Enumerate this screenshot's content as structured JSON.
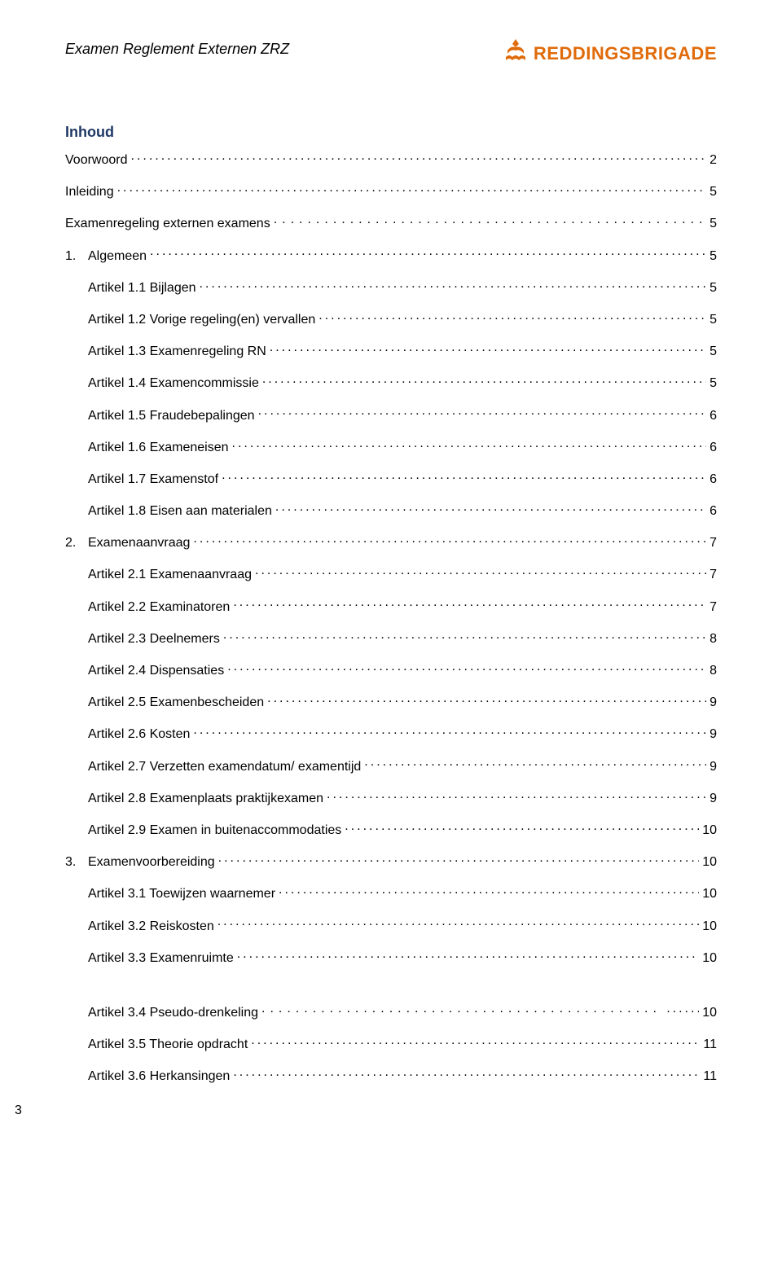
{
  "header": {
    "title": "Examen Reglement Externen ZRZ",
    "logo_text": "REDDINGSBRIGADE",
    "logo_color": "#e06b0a"
  },
  "heading": "Inhoud",
  "heading_color": "#1f3864",
  "page_number": "3",
  "toc": [
    {
      "label": "Voorwoord",
      "page": "2",
      "indent": 0,
      "dots": "normal"
    },
    {
      "label": "Inleiding",
      "page": "5",
      "indent": 0,
      "dots": "normal"
    },
    {
      "label": "Examenregeling externen examens",
      "page": "5",
      "indent": 0,
      "dots": "spaced"
    },
    {
      "num": "1.",
      "label": "Algemeen",
      "page": "5",
      "indent": 0,
      "dots": "normal"
    },
    {
      "label": "Artikel 1.1 Bijlagen",
      "page": "5",
      "indent": 1,
      "dots": "normal"
    },
    {
      "label": "Artikel 1.2 Vorige regeling(en) vervallen",
      "page": "5",
      "indent": 1,
      "dots": "normal"
    },
    {
      "label": "Artikel 1.3 Examenregeling RN",
      "page": "5",
      "indent": 1,
      "dots": "normal"
    },
    {
      "label": "Artikel 1.4 Examencommissie",
      "page": "5",
      "indent": 1,
      "dots": "normal"
    },
    {
      "label": "Artikel 1.5 Fraudebepalingen",
      "page": "6",
      "indent": 1,
      "dots": "normal"
    },
    {
      "label": "Artikel 1.6 Exameneisen",
      "page": "6",
      "indent": 1,
      "dots": "normal"
    },
    {
      "label": "Artikel 1.7 Examenstof",
      "page": "6",
      "indent": 1,
      "dots": "normal"
    },
    {
      "label": "Artikel 1.8 Eisen aan materialen",
      "page": "6",
      "indent": 1,
      "dots": "normal"
    },
    {
      "num": "2.",
      "label": "Examenaanvraag",
      "page": "7",
      "indent": 0,
      "dots": "normal"
    },
    {
      "label": "Artikel 2.1 Examenaanvraag",
      "page": "7",
      "indent": 1,
      "dots": "normal"
    },
    {
      "label": "Artikel 2.2 Examinatoren",
      "page": "7",
      "indent": 1,
      "dots": "normal"
    },
    {
      "label": "Artikel 2.3 Deelnemers",
      "page": "8",
      "indent": 1,
      "dots": "normal"
    },
    {
      "label": "Artikel 2.4 Dispensaties",
      "page": "8",
      "indent": 1,
      "dots": "normal"
    },
    {
      "label": "Artikel 2.5 Examenbescheiden",
      "page": "9",
      "indent": 1,
      "dots": "normal"
    },
    {
      "label": "Artikel 2.6 Kosten",
      "page": "9",
      "indent": 1,
      "dots": "normal"
    },
    {
      "label": "Artikel 2.7 Verzetten examendatum/ examentijd",
      "page": "9",
      "indent": 1,
      "dots": "normal"
    },
    {
      "label": "Artikel 2.8 Examenplaats praktijkexamen",
      "page": "9",
      "indent": 1,
      "dots": "normal"
    },
    {
      "label": "Artikel 2.9 Examen in buitenaccommodaties",
      "page": "10",
      "indent": 1,
      "dots": "normal"
    },
    {
      "num": "3.",
      "label": "Examenvoorbereiding",
      "page": "10",
      "indent": 0,
      "dots": "normal"
    },
    {
      "label": "Artikel 3.1 Toewijzen waarnemer",
      "page": "10",
      "indent": 1,
      "dots": "normal"
    },
    {
      "label": "Artikel 3.2 Reiskosten",
      "page": "10",
      "indent": 1,
      "dots": "normal"
    },
    {
      "label": "Artikel 3.3 Examenruimte",
      "page": "10",
      "indent": 1,
      "dots": "normal"
    },
    {
      "gap": true
    },
    {
      "label": "Artikel 3.4 Pseudo-drenkeling",
      "page": "10",
      "indent": 1,
      "dots": "spaced",
      "prefix_dots": true
    },
    {
      "label": "Artikel 3.5 Theorie opdracht",
      "page": "11",
      "indent": 1,
      "dots": "normal"
    },
    {
      "label": "Artikel 3.6 Herkansingen",
      "page": "11",
      "indent": 1,
      "dots": "normal"
    }
  ]
}
